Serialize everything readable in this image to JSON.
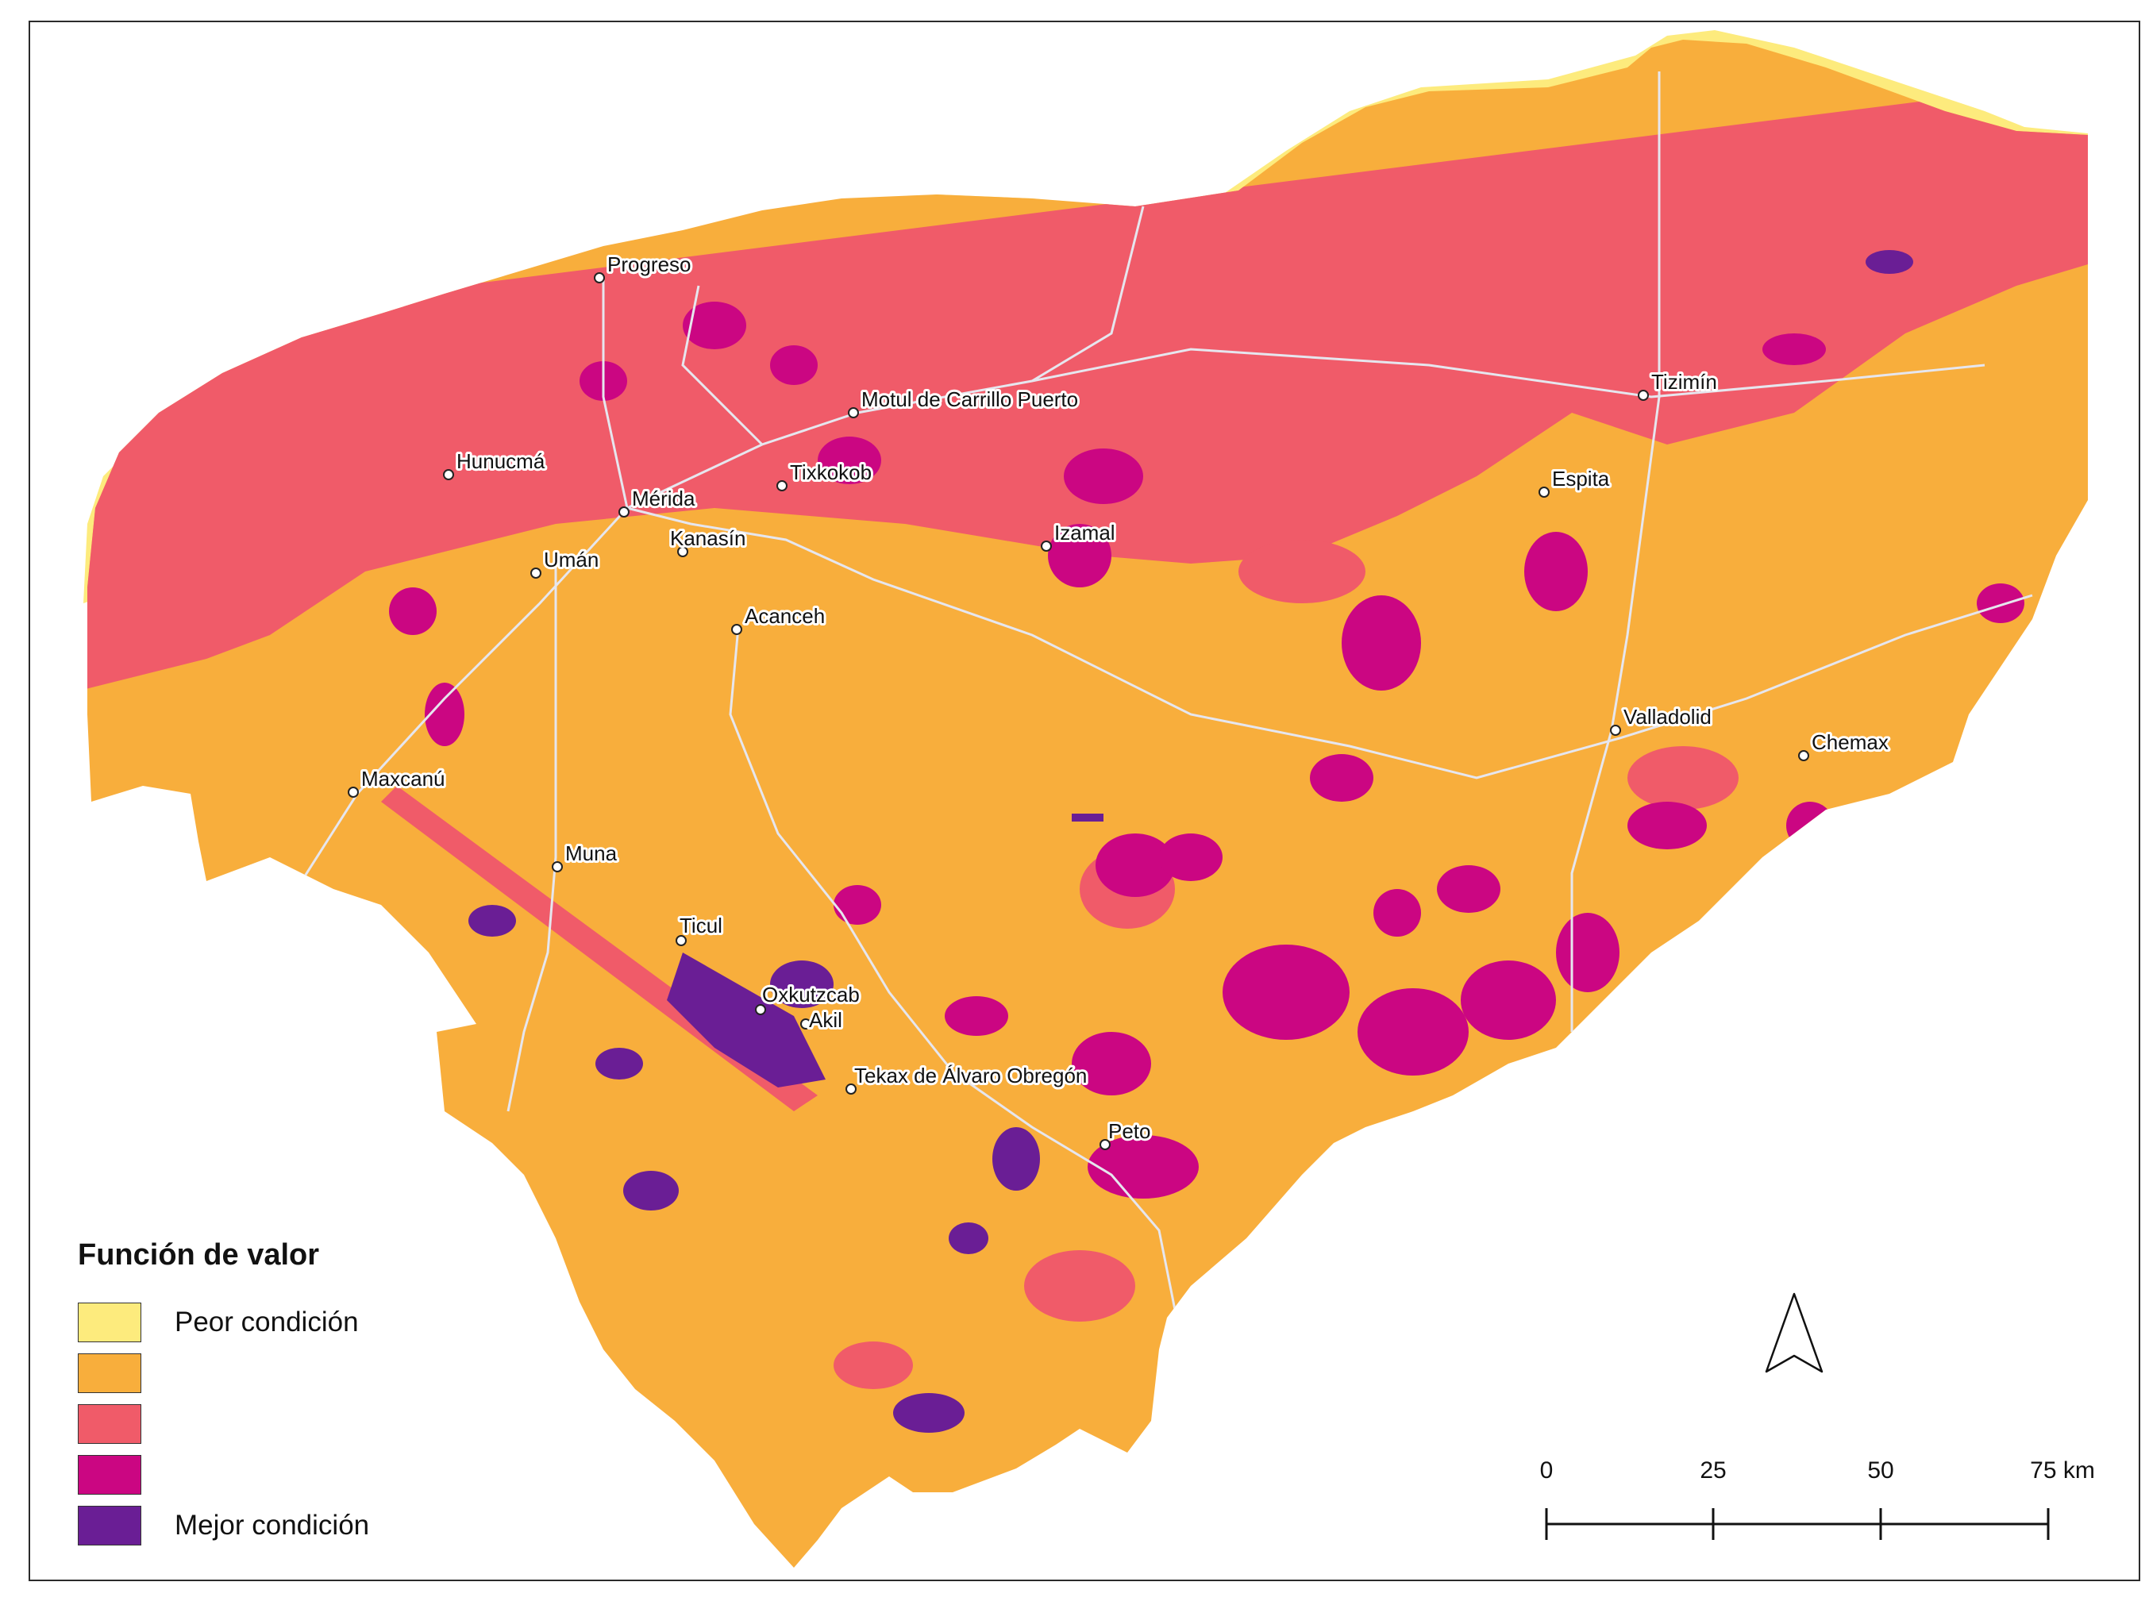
{
  "map": {
    "colors": {
      "peor": "#FDEB7D",
      "c2": "#F8AE3C",
      "c3": "#F05B69",
      "c4": "#CB0682",
      "mejor": "#6A1E95",
      "roads": "#E6E6EE"
    },
    "cities": [
      {
        "name": "Progreso"
      },
      {
        "name": "Hunucmá"
      },
      {
        "name": "Mérida"
      },
      {
        "name": "Tixkokob"
      },
      {
        "name": "Kanasín"
      },
      {
        "name": "Umán"
      },
      {
        "name": "Motul de Carrillo Puerto"
      },
      {
        "name": "Izamal"
      },
      {
        "name": "Acanceh"
      },
      {
        "name": "Tizimín"
      },
      {
        "name": "Espita"
      },
      {
        "name": "Valladolid"
      },
      {
        "name": "Chemax"
      },
      {
        "name": "Maxcanú"
      },
      {
        "name": "Muna"
      },
      {
        "name": "Ticul"
      },
      {
        "name": "Oxkutzcab"
      },
      {
        "name": "Akil"
      },
      {
        "name": "Tekax de Álvaro Obregón"
      },
      {
        "name": "Peto"
      }
    ],
    "north_arrow_icon": "north-arrow-icon"
  },
  "legend": {
    "title": "Función de valor",
    "items": [
      {
        "label": "Peor condición"
      },
      {
        "label": ""
      },
      {
        "label": ""
      },
      {
        "label": ""
      },
      {
        "label": "Mejor condición"
      }
    ]
  },
  "scale_bar": {
    "ticks": [
      "0",
      "25",
      "50",
      "75 km"
    ]
  }
}
